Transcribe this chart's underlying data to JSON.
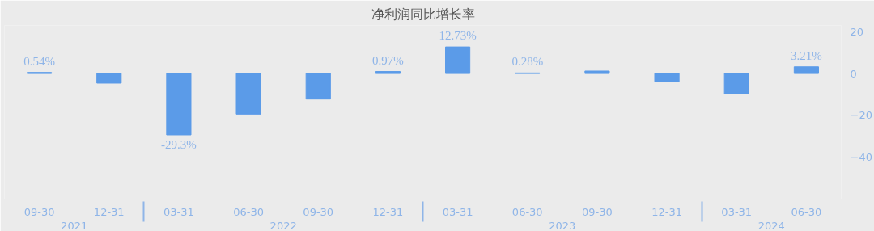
{
  "chart_data": {
    "type": "bar",
    "title": "净利润同比增长率",
    "categories": [
      "09-30",
      "12-31",
      "03-31",
      "06-30",
      "09-30",
      "12-31",
      "03-31",
      "06-30",
      "09-30",
      "12-31",
      "03-31",
      "06-30"
    ],
    "annotations": [
      "2021",
      "2022",
      "2023",
      "2024"
    ],
    "values": [
      0.54,
      -4.6,
      -29.3,
      -19.4,
      -12.2,
      0.97,
      12.73,
      0.28,
      1.2,
      -3.8,
      -9.7,
      3.21
    ],
    "value_labels": [
      "0.54%",
      null,
      "-29.3%",
      null,
      null,
      "0.97%",
      "12.73%",
      "0.28%",
      null,
      null,
      null,
      "3.21%"
    ],
    "color": "#5b9be8",
    "ylim": [
      -60,
      23
    ],
    "yticks": [
      20,
      0,
      -20,
      -40
    ],
    "grid": false
  }
}
